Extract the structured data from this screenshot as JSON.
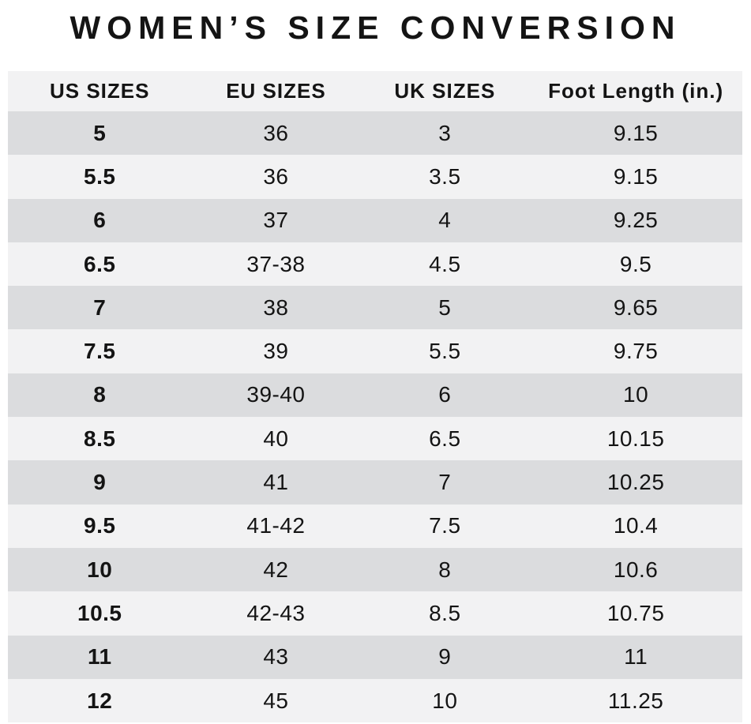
{
  "title": "WOMEN’S SIZE CONVERSION",
  "colors": {
    "background": "#ffffff",
    "header_bg": "#f2f2f3",
    "row_dark": "#dbdcde",
    "row_light": "#f2f2f3",
    "text": "#141414"
  },
  "chart_data": {
    "type": "table",
    "title": "WOMEN’S SIZE CONVERSION",
    "columns": [
      "US SIZES",
      "EU SIZES",
      "UK SIZES",
      "Foot Length (in.)"
    ],
    "rows": [
      [
        "5",
        "36",
        "3",
        "9.15"
      ],
      [
        "5.5",
        "36",
        "3.5",
        "9.15"
      ],
      [
        "6",
        "37",
        "4",
        "9.25"
      ],
      [
        "6.5",
        "37-38",
        "4.5",
        "9.5"
      ],
      [
        "7",
        "38",
        "5",
        "9.65"
      ],
      [
        "7.5",
        "39",
        "5.5",
        "9.75"
      ],
      [
        "8",
        "39-40",
        "6",
        "10"
      ],
      [
        "8.5",
        "40",
        "6.5",
        "10.15"
      ],
      [
        "9",
        "41",
        "7",
        "10.25"
      ],
      [
        "9.5",
        "41-42",
        "7.5",
        "10.4"
      ],
      [
        "10",
        "42",
        "8",
        "10.6"
      ],
      [
        "10.5",
        "42-43",
        "8.5",
        "10.75"
      ],
      [
        "11",
        "43",
        "9",
        "11"
      ],
      [
        "12",
        "45",
        "10",
        "11.25"
      ]
    ],
    "layout": {
      "stripe_pattern": "alternating dark/light starting dark",
      "first_column_bold": true,
      "all_cells_centered": true
    }
  }
}
